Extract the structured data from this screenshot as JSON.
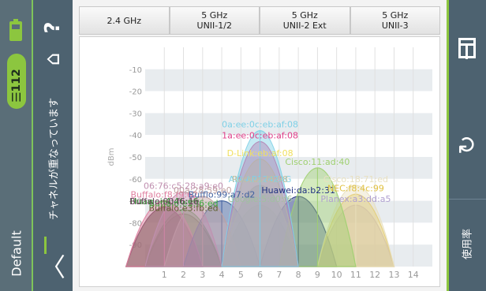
{
  "status": {
    "signal_count": "112",
    "battery_color": "#8cc63f"
  },
  "left_panel": {
    "profile": "Default",
    "notice": "チャネルが重なっています",
    "help": "?"
  },
  "tabs": [
    {
      "label": "2.4 GHz"
    },
    {
      "label": "5 GHz\nUNII-1/2"
    },
    {
      "label": "5 GHz\nUNII-2 Ext"
    },
    {
      "label": "5 GHz\nUNII-3"
    }
  ],
  "right_panel": {
    "usage_label": "使用率"
  },
  "chart_data": {
    "type": "area",
    "ylabel": "dBm",
    "ylim": [
      -100,
      0
    ],
    "yticks": [
      -10,
      -20,
      -30,
      -40,
      -50,
      -60,
      -70,
      -80,
      -90
    ],
    "xlim": [
      0,
      15
    ],
    "xticks": [
      1,
      2,
      3,
      4,
      5,
      6,
      7,
      8,
      9,
      10,
      11,
      12,
      13,
      14
    ],
    "networks": [
      {
        "name": "0a:ee:0c:eb:af:08",
        "channel": 6,
        "dbm": -38,
        "color": "#7fd0e6"
      },
      {
        "name": "1a:ee:0c:eb:af:08",
        "channel": 6,
        "dbm": -43,
        "color": "#e0408a"
      },
      {
        "name": "D-Link:eb:af:08",
        "channel": 6,
        "dbm": -51,
        "color": "#f0e060"
      },
      {
        "name": "Cisco:11:ad:40",
        "channel": 9,
        "dbm": -55,
        "color": "#9fd070"
      },
      {
        "name": "AIR-AP1242AG",
        "channel": 6,
        "dbm": -63,
        "color": "#7fd0e6"
      },
      {
        "name": "Ruckus:f8:98",
        "channel": 6,
        "dbm": -63,
        "color": "#c0c0a0"
      },
      {
        "name": "Cisco:18:71:ed",
        "channel": 11,
        "dbm": -63,
        "color": "#e8e0c0"
      },
      {
        "name": "06:76:c5:28:a9:e0",
        "channel": 2,
        "dbm": -66,
        "color": "#c090b0"
      },
      {
        "name": "00a:28:59:e0",
        "channel": 3,
        "dbm": -68,
        "color": "#c0a0a0"
      },
      {
        "name": "NEC:f8:4c:99",
        "channel": 11,
        "dbm": -67,
        "color": "#e0c040"
      },
      {
        "name": "Huawei:da:b2:31",
        "channel": 8,
        "dbm": -68,
        "color": "#203080"
      },
      {
        "name": "Buffalo:f8:f9:62",
        "channel": 1,
        "dbm": -70,
        "color": "#e080a0"
      },
      {
        "name": "Bufflo:99:a7:d2",
        "channel": 4,
        "dbm": -70,
        "color": "#4060a0"
      },
      {
        "name": "Google:5:d0:f6",
        "channel": 6,
        "dbm": -72,
        "color": "#a0c0a0"
      },
      {
        "name": "Planex:a3:dd:a5",
        "channel": 11,
        "dbm": -72,
        "color": "#b0a0d0"
      },
      {
        "name": "Huawei:4:46:e6",
        "channel": 1,
        "dbm": -73,
        "color": "#2a8a2a"
      },
      {
        "name": "Buffalo:e3:f6:ed",
        "channel": 2,
        "dbm": -74,
        "color": "#40aa40"
      },
      {
        "name": "Buffalo:e3:fb:ed",
        "channel": 2,
        "dbm": -76,
        "color": "#606030"
      },
      {
        "name": "Buffalo:00:f6:1e",
        "channel": 1,
        "dbm": -73,
        "color": "#704060"
      }
    ]
  }
}
